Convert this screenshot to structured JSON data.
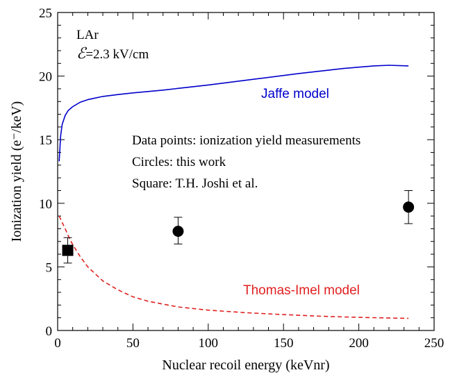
{
  "chart_data": {
    "type": "scatter",
    "title": "",
    "xlabel": "Nuclear recoil energy (keVnr)",
    "ylabel": "Ionization yield (e⁻/keV)",
    "xlim": [
      0,
      250
    ],
    "ylim": [
      0,
      25
    ],
    "x_ticks": [
      "0",
      "50",
      "100",
      "150",
      "200",
      "250"
    ],
    "y_ticks": [
      "0",
      "5",
      "10",
      "15",
      "20",
      "25"
    ],
    "grid": false,
    "legend": "none",
    "annotations": {
      "medium": "LAr",
      "field_symbol": "ℰ",
      "field_value": "=2.3 kV/cm",
      "note_line1": "Data points: ionization yield measurements",
      "note_line2": "Circles: this work",
      "note_line3": "Square: T.H. Joshi et al."
    },
    "series": [
      {
        "name": "Jaffe model",
        "kind": "line",
        "style": "solid",
        "color": "#0000cc",
        "x": [
          1,
          2,
          3,
          5,
          7,
          10,
          15,
          20,
          30,
          40,
          50,
          70,
          100,
          130,
          160,
          190,
          210,
          220,
          233
        ],
        "y": [
          13.3,
          15.3,
          16.2,
          16.9,
          17.3,
          17.6,
          17.95,
          18.15,
          18.4,
          18.55,
          18.68,
          18.9,
          19.3,
          19.75,
          20.2,
          20.6,
          20.8,
          20.85,
          20.8
        ]
      },
      {
        "name": "Thomas-Imel model",
        "kind": "line",
        "style": "dashed",
        "color": "#e02020",
        "x": [
          1,
          3,
          5,
          8,
          10,
          15,
          20,
          30,
          40,
          50,
          60,
          80,
          100,
          125,
          150,
          175,
          200,
          233
        ],
        "y": [
          9.0,
          8.5,
          8.0,
          7.2,
          6.75,
          5.8,
          5.0,
          3.9,
          3.2,
          2.65,
          2.3,
          1.85,
          1.6,
          1.4,
          1.25,
          1.12,
          1.03,
          0.95
        ]
      },
      {
        "name": "Circles: this work",
        "kind": "points",
        "marker": "circle",
        "color": "#000000",
        "x": [
          80,
          233
        ],
        "y": [
          7.8,
          9.7
        ],
        "err_low": [
          1.0,
          1.3
        ],
        "err_high": [
          1.1,
          1.3
        ]
      },
      {
        "name": "Square: T.H. Joshi et al.",
        "kind": "points",
        "marker": "square",
        "color": "#000000",
        "x": [
          6.7
        ],
        "y": [
          6.3
        ],
        "err_low": [
          1.0
        ],
        "err_high": [
          1.0
        ]
      }
    ],
    "model_labels": [
      {
        "text": "Jaffe model",
        "color": "#0000cc"
      },
      {
        "text": "Thomas-Imel model",
        "color": "#e02020"
      }
    ]
  }
}
